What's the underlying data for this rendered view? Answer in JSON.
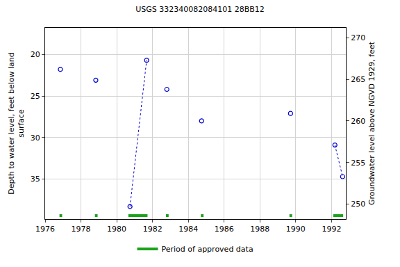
{
  "chart_data": {
    "type": "scatter",
    "title": "USGS 332340082084101 28BB12",
    "y_label": "Depth to water level, feet below land\nsurface",
    "y2_label": "Groundwater level above NGVD 1929, feet",
    "xlim": [
      1976,
      1992.8
    ],
    "xticks": [
      1976,
      1978,
      1980,
      1982,
      1984,
      1986,
      1988,
      1990,
      1992
    ],
    "ylim": [
      39.8,
      16.8
    ],
    "yticks": [
      20,
      25,
      30,
      35
    ],
    "y2lim": [
      248.2,
      271.2
    ],
    "y2ticks": [
      250,
      255,
      260,
      265,
      270
    ],
    "grid": true,
    "legend": "bottom",
    "series": [
      {
        "color": "#0000cc",
        "marker": "open circle",
        "line_style": "dotted",
        "x": [
          1976.85,
          1978.83,
          1978.83,
          1980.74,
          1980.74,
          1981.67,
          1982.8,
          1982.8,
          1984.74,
          1984.74,
          1989.71,
          1989.71,
          1992.19,
          1992.19,
          1992.62
        ],
        "values": [
          21.8,
          null,
          23.1,
          null,
          38.3,
          20.7,
          null,
          24.2,
          null,
          28.0,
          null,
          27.1,
          null,
          30.9,
          34.7
        ]
      },
      {
        "name": "Period of approved data",
        "type": "period",
        "color": "#1aa31a",
        "periods": [
          [
            1976.8,
            1976.95
          ],
          [
            1978.78,
            1978.93
          ],
          [
            1980.65,
            1981.72
          ],
          [
            1982.75,
            1982.9
          ],
          [
            1984.7,
            1984.85
          ],
          [
            1989.65,
            1989.8
          ],
          [
            1992.1,
            1992.65
          ]
        ]
      }
    ]
  }
}
